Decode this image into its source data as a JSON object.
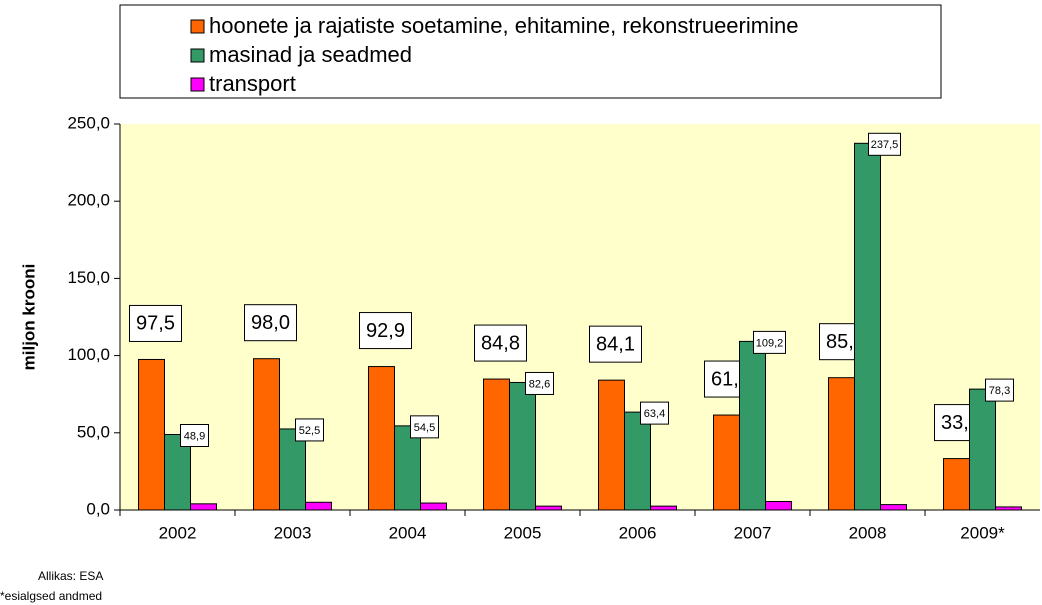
{
  "chart_data": {
    "type": "bar",
    "y_label": "miljon krooni",
    "categories": [
      "2002",
      "2003",
      "2004",
      "2005",
      "2006",
      "2007",
      "2008",
      "2009*"
    ],
    "series": [
      {
        "name": "hoonete ja rajatiste soetamine, ehitamine, rekonstrueerimine",
        "color": "#ff6600",
        "values": [
          97.5,
          98.0,
          92.9,
          84.8,
          84.1,
          61.5,
          85.7,
          33.3
        ],
        "value_labels": [
          "97,5",
          "98,0",
          "92,9",
          "84,8",
          "84,1",
          "61,5",
          "85,7",
          "33,3"
        ]
      },
      {
        "name": "masinad ja seadmed",
        "color": "#339966",
        "values": [
          48.9,
          52.5,
          54.5,
          82.6,
          63.4,
          109.2,
          237.5,
          78.3
        ],
        "value_labels": [
          "48,9",
          "52,5",
          "54,5",
          "82,6",
          "63,4",
          "109,2",
          "237,5",
          "78,3"
        ]
      },
      {
        "name": "transport",
        "color": "#ff00ff",
        "values": [
          4.0,
          5.0,
          4.5,
          2.5,
          2.5,
          5.5,
          3.5,
          2.0
        ]
      }
    ],
    "ylim": [
      0,
      250
    ],
    "yticks": [
      {
        "value": 0,
        "label": "0,0"
      },
      {
        "value": 50,
        "label": "50,0"
      },
      {
        "value": 100,
        "label": "100,0"
      },
      {
        "value": 150,
        "label": "150,0"
      },
      {
        "value": 200,
        "label": "200,0"
      },
      {
        "value": 250,
        "label": "250,0"
      }
    ],
    "grid": false,
    "legend": "top",
    "plot_background": "#ffffcc",
    "notes": [
      "Allikas: ESA",
      "*esialgsed andmed"
    ]
  }
}
